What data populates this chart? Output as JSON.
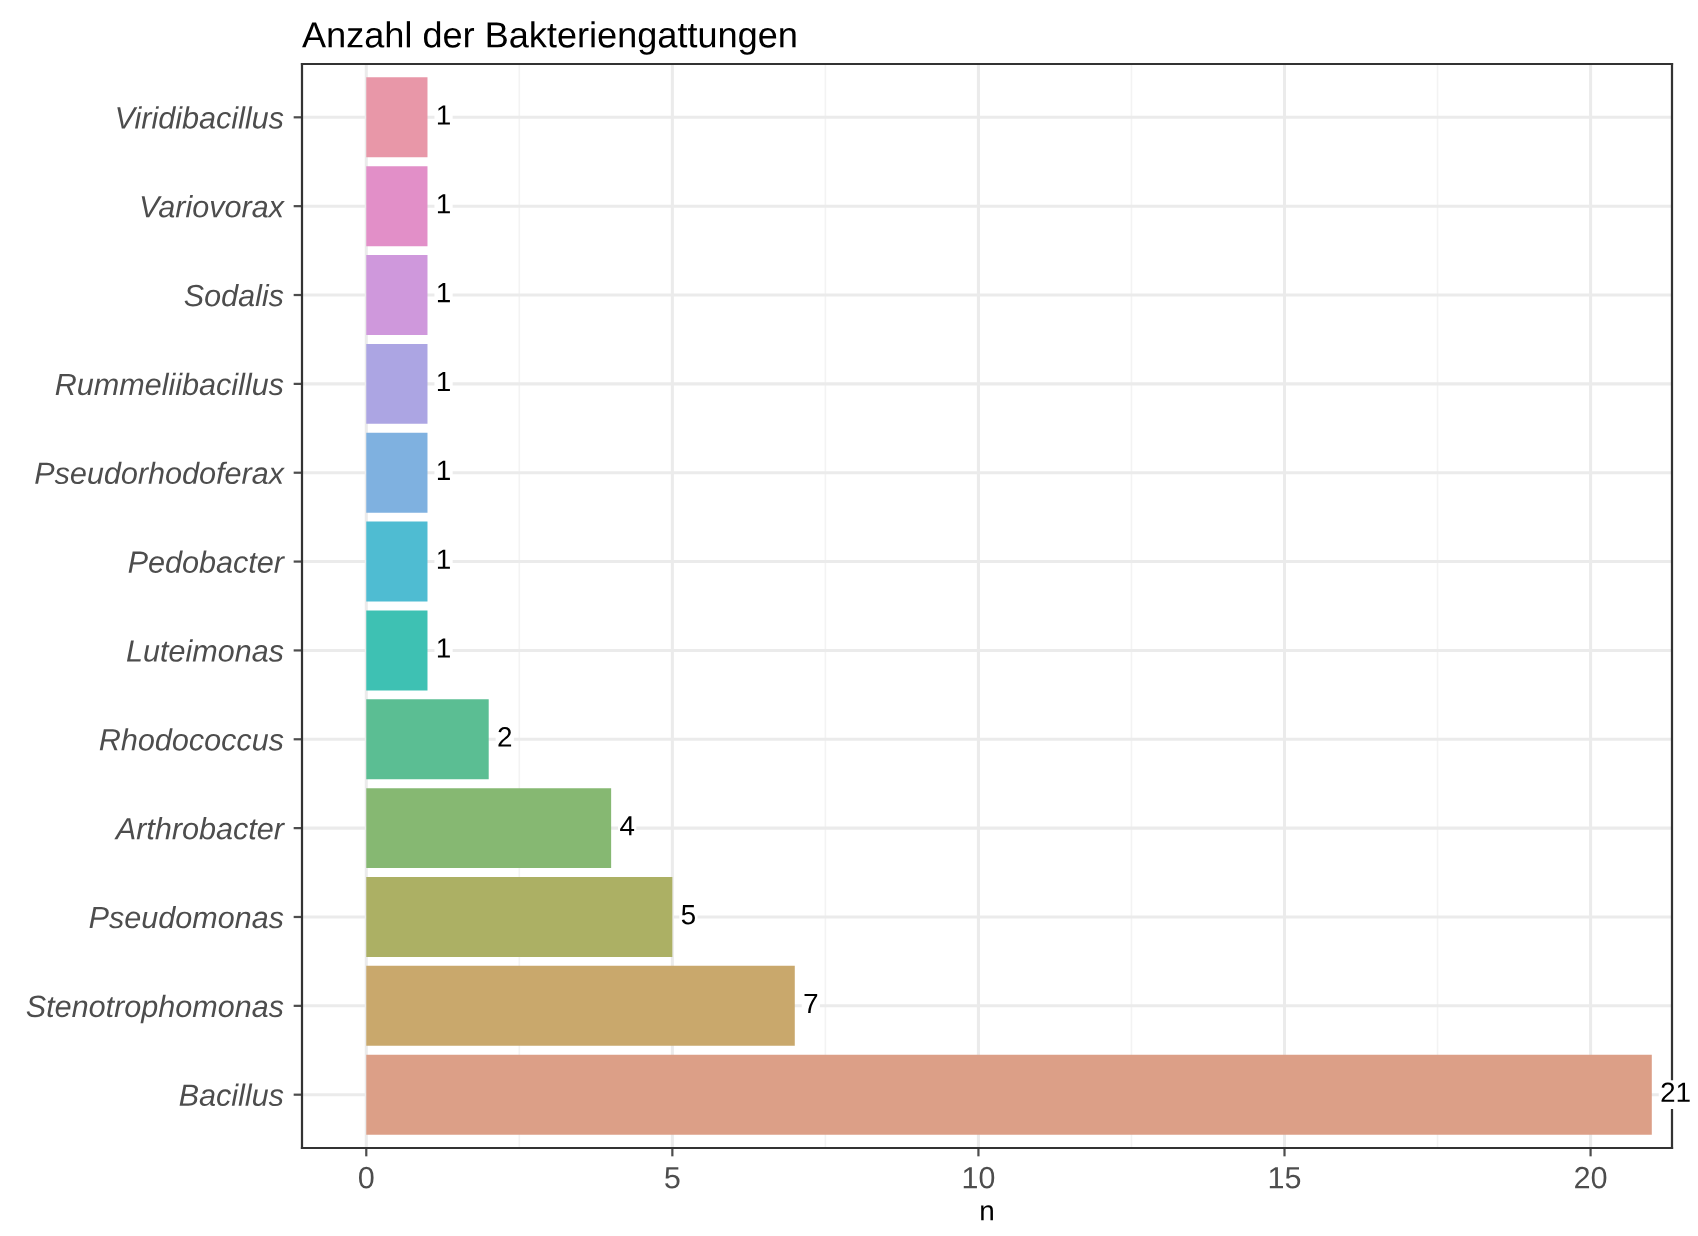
{
  "chart_data": {
    "type": "bar",
    "orientation": "horizontal",
    "title": "Anzahl der Bakteriengattungen",
    "xlabel": "n",
    "categories": [
      "Viridibacillus",
      "Variovorax",
      "Sodalis",
      "Rummeliibacillus",
      "Pseudorhodoferax",
      "Pedobacter",
      "Luteimonas",
      "Rhodococcus",
      "Arthrobacter",
      "Pseudomonas",
      "Stenotrophomonas",
      "Bacillus"
    ],
    "values": [
      1,
      1,
      1,
      1,
      1,
      1,
      1,
      2,
      4,
      5,
      7,
      21
    ],
    "colors": [
      "#e897a8",
      "#e28fc8",
      "#cf98dc",
      "#aca5e3",
      "#7fb1e0",
      "#4fbcd2",
      "#3ec1b3",
      "#5bbe93",
      "#86b872",
      "#acb064",
      "#c9a86c",
      "#dc9f87"
    ],
    "xlim": [
      -1.05,
      21.33
    ],
    "xticks": [
      0,
      5,
      10,
      15,
      20
    ],
    "grid": true,
    "data_labels": true
  }
}
